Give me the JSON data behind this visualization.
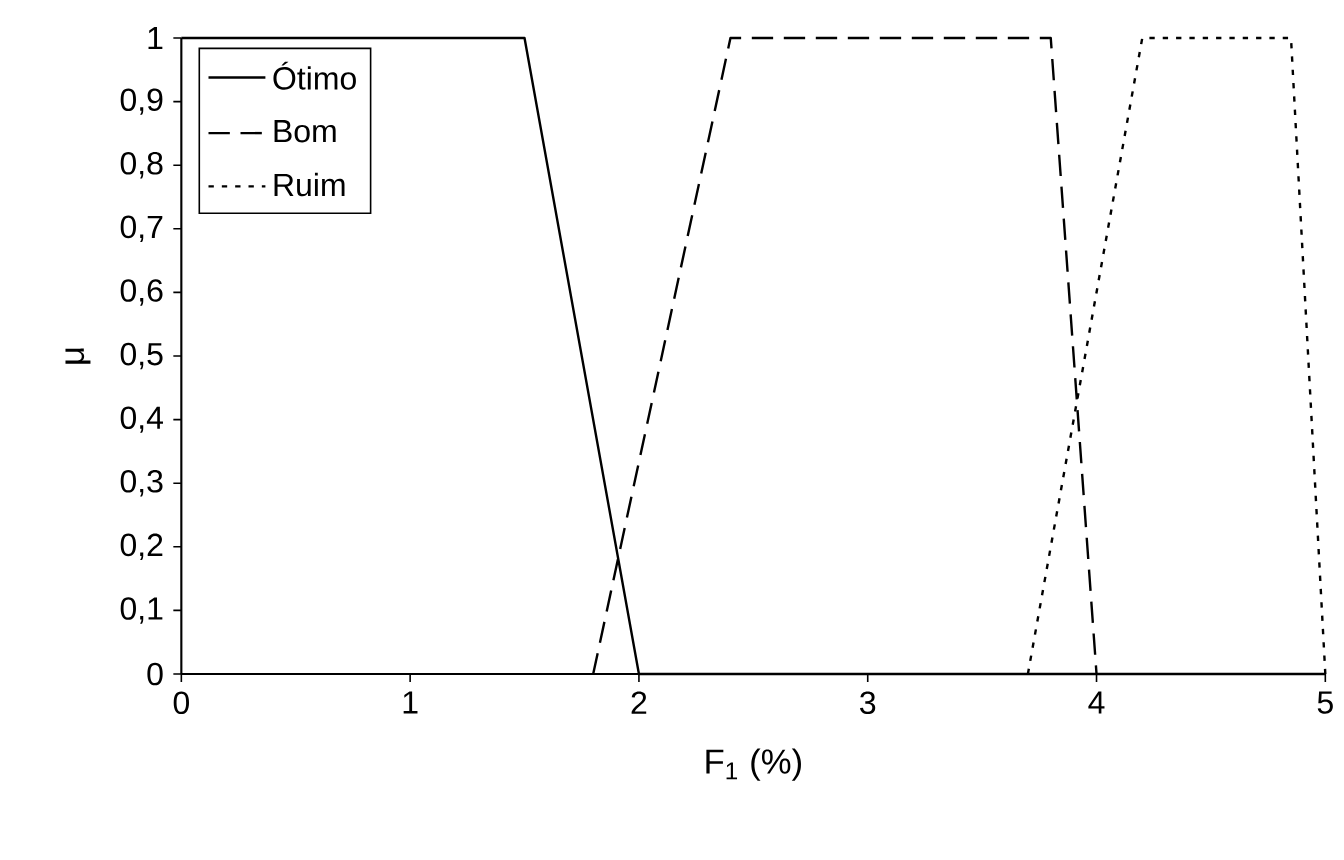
{
  "chart_data": {
    "type": "line",
    "xlabel": "F$_{1}$ (%)",
    "ylabel": "μ",
    "xlim": [
      0,
      5
    ],
    "ylim": [
      0,
      1
    ],
    "xticks": [
      0,
      1,
      2,
      3,
      4,
      5
    ],
    "yticks": [
      0,
      {
        "value": 0.1,
        "label": "0,1"
      },
      {
        "value": 0.2,
        "label": "0,2"
      },
      {
        "value": 0.3,
        "label": "0,3"
      },
      {
        "value": 0.4,
        "label": "0,4"
      },
      {
        "value": 0.5,
        "label": "0,5"
      },
      {
        "value": 0.6,
        "label": "0,6"
      },
      {
        "value": 0.7,
        "label": "0,7"
      },
      {
        "value": 0.8,
        "label": "0,8"
      },
      {
        "value": 0.9,
        "label": "0,9"
      },
      1
    ],
    "grid": false,
    "legend": "top left",
    "marker": "none",
    "series": [
      {
        "name": "Ótimo",
        "color": "#000000",
        "line_style": "solid",
        "x": [
          0,
          1.5,
          2,
          5
        ],
        "values": [
          1,
          1,
          0,
          0
        ]
      },
      {
        "name": "Bom",
        "color": "#000000",
        "line_style": "dashed",
        "x": [
          1.8,
          2.4,
          3.8,
          4
        ],
        "values": [
          0,
          1,
          1,
          0
        ]
      },
      {
        "name": "Ruim",
        "color": "#000000",
        "line_style": "dotted",
        "x": [
          3.7,
          4.2,
          4.85,
          5
        ],
        "values": [
          0,
          1,
          1,
          0
        ]
      }
    ]
  }
}
